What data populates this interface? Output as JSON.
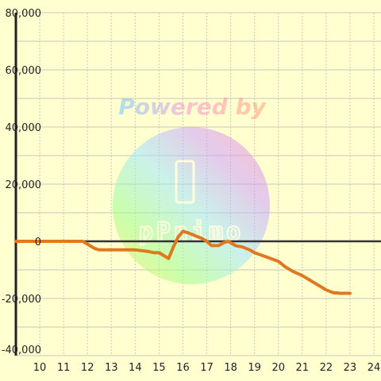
{
  "watermark": {
    "text": "Powered by",
    "logo_text": "pPnimo"
  },
  "chart_data": {
    "type": "line",
    "title": "",
    "xlabel": "",
    "ylabel": "",
    "xlim": [
      9,
      24.3
    ],
    "ylim": [
      -40000,
      80000
    ],
    "x_ticks": [
      10,
      11,
      12,
      13,
      14,
      15,
      16,
      17,
      18,
      19,
      20,
      21,
      22,
      23,
      24
    ],
    "y_ticks": [
      80000,
      60000,
      40000,
      20000,
      0,
      -20000,
      -40000
    ],
    "y_tick_labels": [
      "80,000",
      "60,000",
      "40,000",
      "20,000",
      "0",
      "-20,000",
      "-40,000"
    ],
    "grid": true,
    "series_color": "#e07820",
    "series": [
      {
        "x": [
          9.0,
          11.8,
          12.0,
          12.3,
          12.5,
          13.0,
          13.5,
          14.0,
          14.5,
          14.8,
          15.0,
          15.2,
          15.4,
          15.6,
          15.8,
          16.0,
          16.2,
          16.5,
          16.8,
          17.0,
          17.2,
          17.5,
          17.7,
          17.9,
          18.0,
          18.2,
          18.5,
          18.8,
          19.0,
          19.5,
          20.0,
          20.3,
          20.6,
          21.0,
          21.3,
          21.6,
          22.0,
          22.3,
          22.6,
          23.0
        ],
        "y": [
          0,
          0,
          -1000,
          -2500,
          -3000,
          -3000,
          -3000,
          -3000,
          -3500,
          -4000,
          -4000,
          -5000,
          -6000,
          -2000,
          1500,
          3500,
          3000,
          2000,
          1000,
          0,
          -1500,
          -1500,
          -500,
          0,
          -500,
          -1500,
          -2000,
          -3000,
          -4000,
          -5500,
          -7000,
          -9000,
          -10500,
          -12000,
          -13500,
          -15000,
          -17000,
          -18000,
          -18200,
          -18200
        ]
      }
    ]
  }
}
